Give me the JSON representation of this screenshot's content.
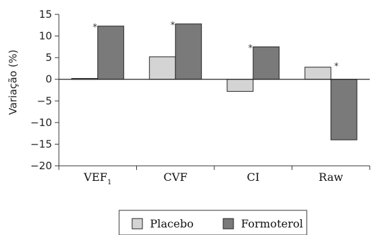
{
  "chart_data": {
    "type": "bar",
    "categories": [
      "VEF1",
      "CVF",
      "CI",
      "Raw"
    ],
    "series": [
      {
        "name": "Placebo",
        "values": [
          0.2,
          5.2,
          -2.8,
          2.8
        ],
        "color": "#d4d4d4"
      },
      {
        "name": "Formoterol",
        "values": [
          12.3,
          12.8,
          7.5,
          -14.0
        ],
        "color": "#7a7a7a"
      }
    ],
    "significance_marker": "*",
    "significant": [
      true,
      true,
      true,
      true
    ],
    "title": "",
    "xlabel": "",
    "ylabel": "Variação (%)",
    "ylim": [
      -20,
      15
    ],
    "yticks": [
      -20,
      -15,
      -10,
      -5,
      0,
      5,
      10,
      15
    ],
    "ytick_labels": [
      "−20",
      "−15",
      "−10",
      "−5",
      "0",
      "5",
      "10",
      "15"
    ],
    "grid": false,
    "legend_position": "bottom-center"
  }
}
